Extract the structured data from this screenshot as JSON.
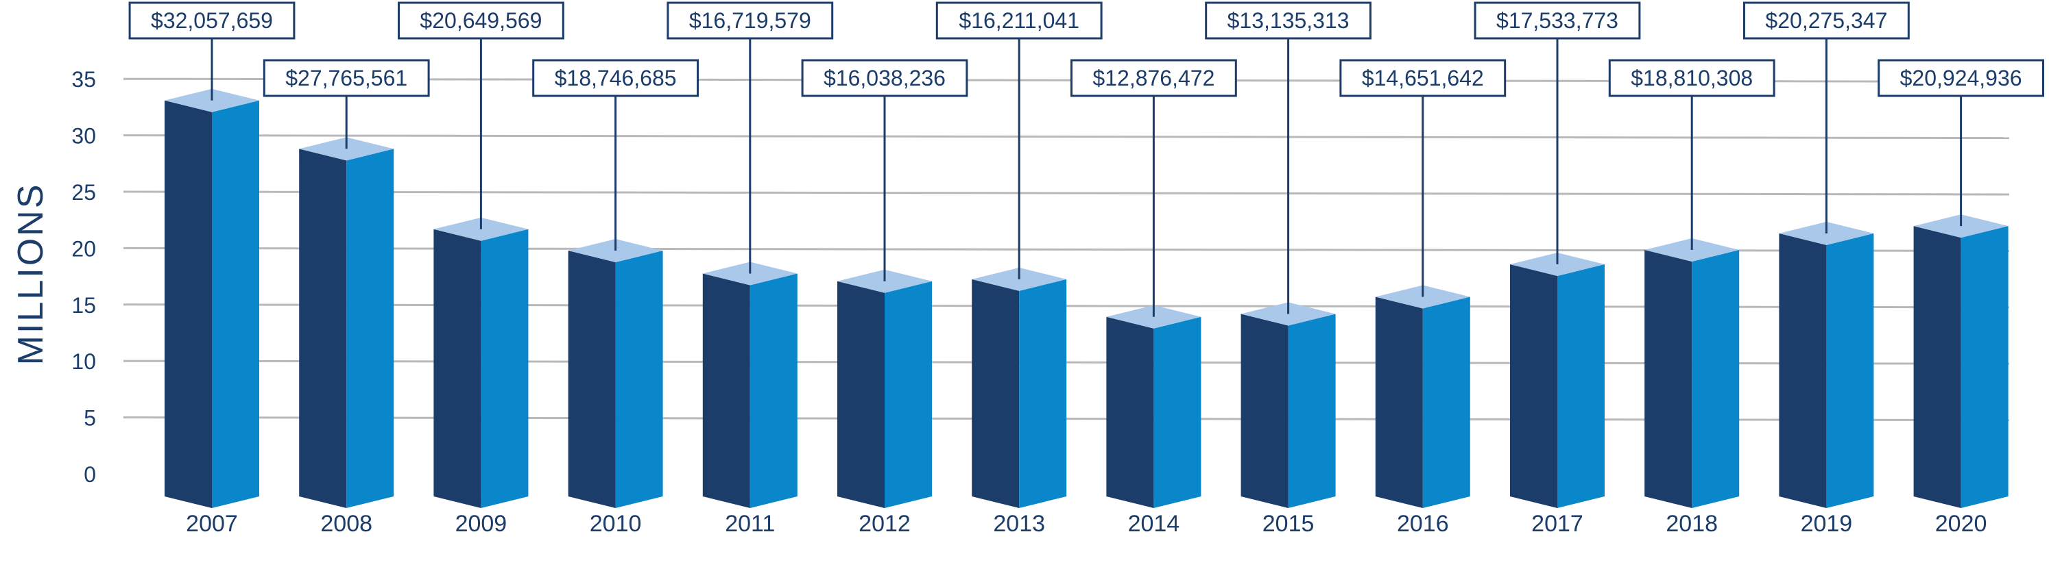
{
  "chart_data": {
    "type": "bar",
    "title": "",
    "xlabel": "",
    "ylabel": "MILLIONS",
    "ylim": [
      0,
      35
    ],
    "yticks": [
      0,
      5,
      10,
      15,
      20,
      25,
      30,
      35
    ],
    "grid": true,
    "legend": "none",
    "categories": [
      "2007",
      "2008",
      "2009",
      "2010",
      "2011",
      "2012",
      "2013",
      "2014",
      "2015",
      "2016",
      "2017",
      "2018",
      "2019",
      "2020"
    ],
    "values": [
      32.057659,
      27.765561,
      20.649569,
      18.746685,
      16.719579,
      16.038236,
      16.211041,
      12.876472,
      13.135313,
      14.651642,
      17.533773,
      18.810308,
      20.275347,
      20.924936
    ],
    "data_labels": [
      "$32,057,659",
      "$27,765,561",
      "$20,649,569",
      "$18,746,685",
      "$16,719,579",
      "$16,038,236",
      "$16,211,041",
      "$12,876,472",
      "$13,135,313",
      "$14,651,642",
      "$17,533,773",
      "$18,810,308",
      "$20,275,347",
      "$20,924,936"
    ],
    "colors": {
      "bar_left_face": "#1c3c69",
      "bar_right_face": "#0a87cb",
      "bar_top_face": "#a9c8ea",
      "label_border": "#1c3c69",
      "label_text": "#1c3c69",
      "axis_text": "#1c3c69",
      "grid": "#b9b9b9"
    }
  }
}
